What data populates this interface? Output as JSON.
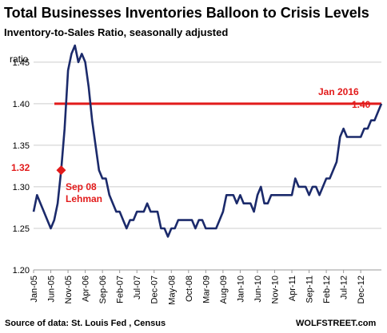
{
  "title": "Total Businesses Inventories Balloon to Crisis Levels",
  "subtitle": "Inventory-to-Sales Ratio, seasonally adjusted",
  "source": "Source of data: St. Louis Fed , Census",
  "brand": "WOLFSTREET.com",
  "colors": {
    "series": "#1b2a6b",
    "accent": "#e21b1b",
    "grid": "#cccccc"
  },
  "chart_data": {
    "type": "line",
    "ylabel": "ratio",
    "ylim": [
      1.2,
      1.47
    ],
    "yticks": [
      "1.20",
      "1.25",
      "1.30",
      "1.35",
      "1.40",
      "1.45"
    ],
    "xticks": [
      "Jan-05",
      "Jun-05",
      "Nov-05",
      "Apr-06",
      "Sep-06",
      "Feb-07",
      "Jul-07",
      "Dec-07",
      "May-08",
      "Oct-08",
      "Mar-09",
      "Aug-09",
      "Jan-10",
      "Jun-10",
      "Nov-10",
      "Apr-11",
      "Sep-11",
      "Feb-12",
      "Jul-12",
      "Dec-12"
    ],
    "grid": "horizontal",
    "series": [
      {
        "values": [
          1.27,
          1.29,
          1.28,
          1.27,
          1.26,
          1.25,
          1.26,
          1.28,
          1.32,
          1.37,
          1.44,
          1.46,
          1.47,
          1.45,
          1.46,
          1.45,
          1.42,
          1.38,
          1.35,
          1.32,
          1.31,
          1.31,
          1.29,
          1.28,
          1.27,
          1.27,
          1.26,
          1.25,
          1.26,
          1.26,
          1.27,
          1.27,
          1.27,
          1.28,
          1.27,
          1.27,
          1.27,
          1.25,
          1.25,
          1.24,
          1.25,
          1.25,
          1.26,
          1.26,
          1.26,
          1.26,
          1.26,
          1.25,
          1.26,
          1.26,
          1.25,
          1.25,
          1.25,
          1.25,
          1.26,
          1.27,
          1.29,
          1.29,
          1.29,
          1.28,
          1.29,
          1.28,
          1.28,
          1.28,
          1.27,
          1.29,
          1.3,
          1.28,
          1.28,
          1.29,
          1.29,
          1.29,
          1.29,
          1.29,
          1.29,
          1.29,
          1.31,
          1.3,
          1.3,
          1.3,
          1.29,
          1.3,
          1.3,
          1.29,
          1.3,
          1.31,
          1.31,
          1.32,
          1.33,
          1.36,
          1.37,
          1.36,
          1.36,
          1.36,
          1.36,
          1.36,
          1.37,
          1.37,
          1.38,
          1.38,
          1.39,
          1.4
        ]
      }
    ],
    "reference_line": {
      "value": 1.4
    },
    "annotations": [
      {
        "label": "Jan 2016",
        "value_label": "1.40"
      },
      {
        "value_label": "1.32",
        "label1": "Sep 08",
        "label2": "Lehman",
        "index": 8,
        "value": 1.32
      }
    ]
  }
}
